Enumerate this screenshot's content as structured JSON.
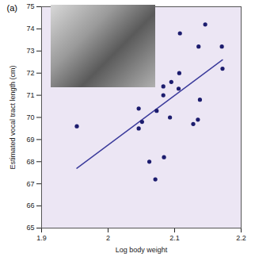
{
  "chart_data": {
    "type": "scatter",
    "panel_label": "(a)",
    "x_label": "Log body weight",
    "y_label": "Estimated vocal tract length (cm)",
    "x": [
      1.953,
      2.046,
      2.046,
      2.051,
      2.062,
      2.071,
      2.073,
      2.084,
      2.083,
      2.083,
      2.093,
      2.095,
      2.106,
      2.108,
      2.107,
      2.128,
      2.135,
      2.136,
      2.138,
      2.146,
      2.171,
      2.172
    ],
    "y": [
      69.6,
      70.4,
      69.5,
      69.8,
      68.0,
      67.2,
      70.3,
      68.2,
      71.4,
      71.0,
      70.0,
      71.6,
      71.3,
      73.8,
      72.0,
      69.7,
      69.9,
      73.2,
      70.8,
      74.2,
      73.2,
      72.2
    ],
    "color": "#1c1c6e",
    "marker": "circle",
    "trend_line": {
      "x": [
        1.953,
        2.172
      ],
      "y": [
        67.7,
        72.6
      ],
      "color": "#3c3c9c",
      "line_style": "solid"
    },
    "xlim": [
      1.9,
      2.2
    ],
    "xticks": [
      1.9,
      2,
      2.1,
      2.2
    ],
    "ylim": [
      65,
      75
    ],
    "yticks": [
      65,
      66,
      67,
      68,
      69,
      70,
      71,
      72,
      73,
      74,
      75
    ],
    "grid": false
  }
}
